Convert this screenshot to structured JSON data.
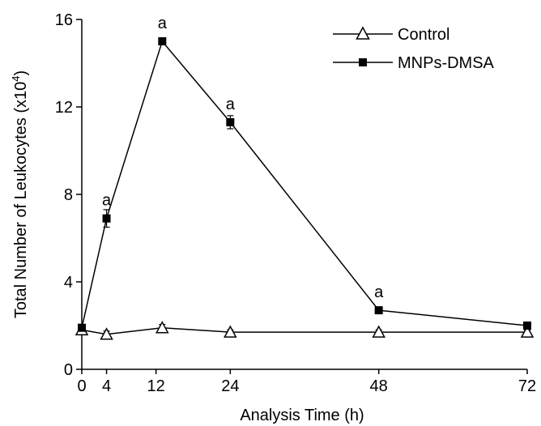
{
  "chart_data": {
    "type": "line",
    "xlabel": "Analysis Time (h)",
    "ylabel": "Total Number of Leukocytes (x10",
    "ylabel_sup": "4",
    "ylabel_close": ")",
    "xlim": [
      0,
      72
    ],
    "ylim": [
      0,
      16
    ],
    "x_ticks": [
      0,
      4,
      12,
      24,
      48,
      72
    ],
    "y_ticks": [
      0,
      4,
      8,
      12,
      16
    ],
    "legend_position": "top-right",
    "series": [
      {
        "name": "Control",
        "marker": "open-triangle",
        "x": [
          0,
          4,
          13,
          24,
          48,
          72
        ],
        "y": [
          1.8,
          1.6,
          1.9,
          1.7,
          1.7,
          1.7
        ],
        "errors": [
          0.1,
          0.15,
          0.15,
          0.1,
          0.1,
          0.1
        ]
      },
      {
        "name": "MNPs-DMSA",
        "marker": "filled-square",
        "x": [
          0,
          4,
          13,
          24,
          48,
          72
        ],
        "y": [
          1.9,
          6.9,
          15.0,
          11.3,
          2.7,
          2.0
        ],
        "errors": [
          0.1,
          0.4,
          0.15,
          0.3,
          0.1,
          0.1
        ]
      }
    ],
    "annotations": [
      {
        "x": 4,
        "y": 6.9,
        "text": "a"
      },
      {
        "x": 13,
        "y": 15.0,
        "text": "a"
      },
      {
        "x": 24,
        "y": 11.3,
        "text": "a"
      },
      {
        "x": 48,
        "y": 2.7,
        "text": "a"
      }
    ]
  }
}
